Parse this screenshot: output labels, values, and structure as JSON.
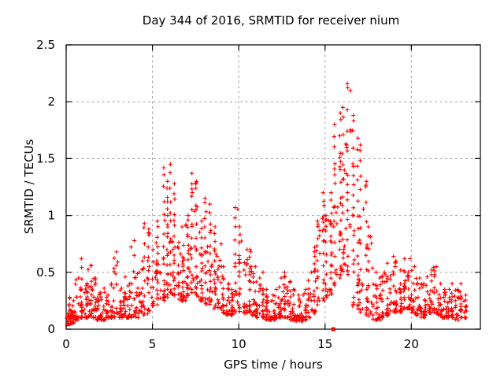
{
  "chart": {
    "background": "#ffffff",
    "border_color": "#000000",
    "text_color": "#000000"
  },
  "chart_data": {
    "type": "scatter",
    "title": "Day 344 of 2016, SRMTID for receiver nium",
    "xlabel": "GPS time / hours",
    "ylabel": "SRMTID / TECUs",
    "xlim": [
      0,
      24
    ],
    "ylim": [
      0,
      2.5
    ],
    "x_ticks": [
      0,
      5,
      10,
      15,
      20
    ],
    "y_ticks": [
      0,
      0.5,
      1,
      1.5,
      2,
      2.5
    ],
    "grid": true,
    "grid_style": "dashed",
    "grid_color": "#a0a0a0",
    "legend": "none",
    "marker": "plus",
    "marker_color": "#ff0000",
    "marker_size": 5,
    "seed": 1210,
    "peak_points": [
      {
        "x": 6.2,
        "y": 1.45
      },
      {
        "x": 10.0,
        "y": 1.07
      },
      {
        "x": 16.4,
        "y": 2.16
      }
    ],
    "special_points": [
      {
        "x": 15.48,
        "y": 0.0,
        "marker": "filled-square"
      }
    ],
    "envelope_note": "dense scatter of ~1700 '+' points summarized as bins [x_start,x_end,y_min,y_max,count]",
    "envelope_bins": [
      [
        0.0,
        0.25,
        0.04,
        0.28,
        26
      ],
      [
        0.25,
        0.5,
        0.05,
        0.25,
        22
      ],
      [
        0.5,
        0.75,
        0.08,
        0.45,
        18
      ],
      [
        0.75,
        1.0,
        0.1,
        0.62,
        22
      ],
      [
        1.0,
        1.25,
        0.1,
        0.4,
        20
      ],
      [
        1.25,
        1.5,
        0.1,
        0.56,
        20
      ],
      [
        1.5,
        1.75,
        0.1,
        0.45,
        18
      ],
      [
        1.75,
        2.0,
        0.08,
        0.32,
        18
      ],
      [
        2.0,
        2.25,
        0.08,
        0.36,
        18
      ],
      [
        2.25,
        2.5,
        0.1,
        0.3,
        16
      ],
      [
        2.5,
        2.75,
        0.1,
        0.4,
        16
      ],
      [
        2.75,
        3.0,
        0.1,
        0.68,
        18
      ],
      [
        3.0,
        3.25,
        0.1,
        0.36,
        16
      ],
      [
        3.25,
        3.5,
        0.12,
        0.46,
        18
      ],
      [
        3.5,
        3.75,
        0.1,
        0.4,
        16
      ],
      [
        3.75,
        4.0,
        0.1,
        0.78,
        18
      ],
      [
        4.0,
        4.25,
        0.1,
        0.5,
        16
      ],
      [
        4.25,
        4.5,
        0.15,
        0.6,
        16
      ],
      [
        4.5,
        4.75,
        0.12,
        0.93,
        16
      ],
      [
        4.75,
        5.0,
        0.15,
        0.88,
        16
      ],
      [
        5.0,
        5.25,
        0.2,
        0.76,
        18
      ],
      [
        5.25,
        5.5,
        0.2,
        0.95,
        20
      ],
      [
        5.5,
        5.75,
        0.25,
        1.42,
        22
      ],
      [
        5.75,
        6.0,
        0.28,
        1.3,
        22
      ],
      [
        6.0,
        6.25,
        0.3,
        1.45,
        24
      ],
      [
        6.25,
        6.5,
        0.28,
        1.28,
        22
      ],
      [
        6.5,
        6.75,
        0.25,
        0.9,
        20
      ],
      [
        6.75,
        7.0,
        0.25,
        0.92,
        20
      ],
      [
        7.0,
        7.25,
        0.28,
        1.0,
        22
      ],
      [
        7.25,
        7.5,
        0.3,
        1.37,
        22
      ],
      [
        7.5,
        7.75,
        0.28,
        1.3,
        22
      ],
      [
        7.75,
        8.0,
        0.25,
        0.95,
        22
      ],
      [
        8.0,
        8.25,
        0.22,
        1.15,
        22
      ],
      [
        8.25,
        8.5,
        0.2,
        1.1,
        20
      ],
      [
        8.5,
        8.75,
        0.18,
        0.9,
        18
      ],
      [
        8.75,
        9.0,
        0.18,
        0.75,
        18
      ],
      [
        9.0,
        9.25,
        0.14,
        0.55,
        18
      ],
      [
        9.25,
        9.5,
        0.12,
        0.4,
        18
      ],
      [
        9.5,
        9.75,
        0.12,
        0.35,
        18
      ],
      [
        9.75,
        10.0,
        0.14,
        1.07,
        18
      ],
      [
        10.0,
        10.25,
        0.14,
        0.9,
        18
      ],
      [
        10.25,
        10.5,
        0.14,
        0.7,
        18
      ],
      [
        10.5,
        10.75,
        0.15,
        0.7,
        18
      ],
      [
        10.75,
        11.0,
        0.12,
        0.55,
        18
      ],
      [
        11.0,
        11.25,
        0.1,
        0.45,
        18
      ],
      [
        11.25,
        11.5,
        0.1,
        0.5,
        18
      ],
      [
        11.5,
        11.75,
        0.08,
        0.35,
        18
      ],
      [
        11.75,
        12.0,
        0.08,
        0.3,
        18
      ],
      [
        12.0,
        12.25,
        0.08,
        0.35,
        18
      ],
      [
        12.25,
        12.5,
        0.1,
        0.45,
        18
      ],
      [
        12.5,
        12.75,
        0.1,
        0.5,
        18
      ],
      [
        12.75,
        13.0,
        0.1,
        0.42,
        18
      ],
      [
        13.0,
        13.25,
        0.08,
        0.35,
        18
      ],
      [
        13.25,
        13.5,
        0.07,
        0.3,
        16
      ],
      [
        13.5,
        13.75,
        0.07,
        0.3,
        16
      ],
      [
        13.75,
        14.0,
        0.08,
        0.35,
        16
      ],
      [
        14.0,
        14.25,
        0.1,
        0.5,
        16
      ],
      [
        14.25,
        14.5,
        0.14,
        0.72,
        18
      ],
      [
        14.5,
        14.75,
        0.2,
        0.95,
        18
      ],
      [
        14.75,
        15.0,
        0.25,
        1.2,
        18
      ],
      [
        15.0,
        15.25,
        0.28,
        1.0,
        18
      ],
      [
        15.25,
        15.5,
        0.3,
        1.2,
        20
      ],
      [
        15.5,
        15.75,
        0.38,
        1.8,
        22
      ],
      [
        15.75,
        16.0,
        0.45,
        1.9,
        24
      ],
      [
        16.0,
        16.25,
        0.48,
        1.95,
        24
      ],
      [
        16.25,
        16.5,
        0.48,
        2.16,
        24
      ],
      [
        16.5,
        16.75,
        0.2,
        1.88,
        22
      ],
      [
        16.75,
        17.0,
        0.15,
        1.68,
        20
      ],
      [
        17.0,
        17.25,
        0.12,
        1.62,
        20
      ],
      [
        17.25,
        17.5,
        0.12,
        1.3,
        18
      ],
      [
        17.5,
        17.75,
        0.1,
        0.9,
        16
      ],
      [
        17.75,
        18.0,
        0.08,
        0.5,
        16
      ],
      [
        18.0,
        18.25,
        0.08,
        0.45,
        16
      ],
      [
        18.25,
        18.5,
        0.1,
        0.5,
        16
      ],
      [
        18.5,
        18.75,
        0.12,
        0.58,
        18
      ],
      [
        18.75,
        19.0,
        0.15,
        0.64,
        18
      ],
      [
        19.0,
        19.25,
        0.15,
        0.6,
        18
      ],
      [
        19.25,
        19.5,
        0.15,
        0.52,
        18
      ],
      [
        19.5,
        19.75,
        0.18,
        0.62,
        18
      ],
      [
        19.75,
        20.0,
        0.18,
        0.62,
        18
      ],
      [
        20.0,
        20.25,
        0.14,
        0.55,
        18
      ],
      [
        20.25,
        20.5,
        0.12,
        0.45,
        16
      ],
      [
        20.5,
        20.75,
        0.1,
        0.4,
        16
      ],
      [
        20.75,
        21.0,
        0.12,
        0.46,
        16
      ],
      [
        21.0,
        21.25,
        0.14,
        0.52,
        18
      ],
      [
        21.25,
        21.5,
        0.14,
        0.55,
        18
      ],
      [
        21.5,
        21.75,
        0.12,
        0.4,
        16
      ],
      [
        21.75,
        22.0,
        0.1,
        0.35,
        16
      ],
      [
        22.0,
        22.25,
        0.1,
        0.35,
        16
      ],
      [
        22.25,
        22.5,
        0.1,
        0.4,
        16
      ],
      [
        22.5,
        22.75,
        0.08,
        0.35,
        16
      ],
      [
        22.75,
        23.0,
        0.1,
        0.4,
        14
      ],
      [
        23.0,
        23.25,
        0.1,
        0.3,
        12
      ]
    ]
  }
}
